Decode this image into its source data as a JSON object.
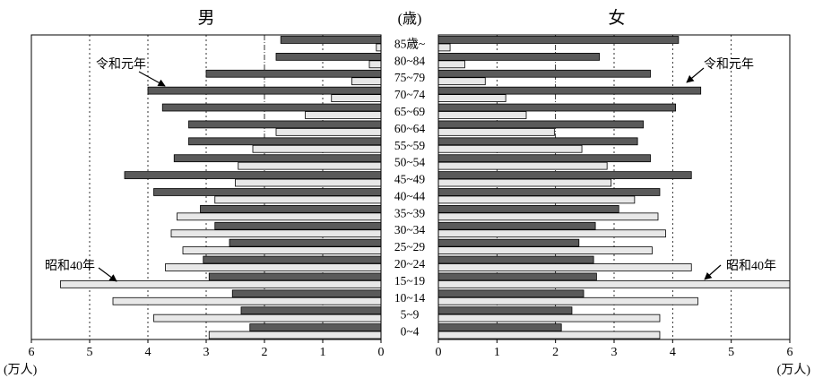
{
  "chart_data": {
    "type": "bar",
    "title_left": "男",
    "title_right": "女",
    "center_header": "(歳)",
    "unit_label": "(万人)",
    "age_groups": [
      "85歳~",
      "80~84",
      "75~79",
      "70~74",
      "65~69",
      "60~64",
      "55~59",
      "50~54",
      "45~49",
      "40~44",
      "35~39",
      "30~34",
      "25~29",
      "20~24",
      "15~19",
      "10~14",
      "5~9",
      "0~4"
    ],
    "x_range": [
      0,
      6
    ],
    "x_ticks": [
      "0",
      "1",
      "2",
      "3",
      "4",
      "5",
      "6"
    ],
    "grid": "vertical dotted lines at 1, 3, 4, 5 and dash-dot at 2",
    "series": [
      {
        "name": "令和元年",
        "sex": "男",
        "color": "#5a5a5a",
        "values": [
          1.72,
          1.8,
          3.0,
          4.0,
          3.75,
          3.3,
          3.3,
          3.55,
          4.4,
          3.9,
          3.1,
          2.85,
          2.6,
          3.05,
          2.95,
          2.55,
          2.4,
          2.25
        ]
      },
      {
        "name": "昭和40年",
        "sex": "男",
        "color": "#e8e8e8",
        "values": [
          0.08,
          0.2,
          0.5,
          0.85,
          1.3,
          1.8,
          2.2,
          2.45,
          2.5,
          2.85,
          3.5,
          3.6,
          3.4,
          3.7,
          5.5,
          4.6,
          3.9,
          2.95
        ]
      },
      {
        "name": "令和元年",
        "sex": "女",
        "color": "#5a5a5a",
        "values": [
          4.1,
          2.75,
          3.62,
          4.48,
          4.05,
          3.5,
          3.4,
          3.62,
          4.32,
          3.78,
          3.08,
          2.68,
          2.4,
          2.65,
          2.7,
          2.48,
          2.28,
          2.1
        ]
      },
      {
        "name": "昭和40年",
        "sex": "女",
        "color": "#e8e8e8",
        "values": [
          0.2,
          0.45,
          0.8,
          1.15,
          1.5,
          1.98,
          2.45,
          2.88,
          2.95,
          3.35,
          3.75,
          3.88,
          3.65,
          4.32,
          6.0,
          4.43,
          3.78,
          3.78
        ]
      }
    ],
    "annotations": [
      {
        "text": "令和元年",
        "side": "男"
      },
      {
        "text": "令和元年",
        "side": "女"
      },
      {
        "text": "昭和40年",
        "side": "男"
      },
      {
        "text": "昭和40年",
        "side": "女"
      }
    ]
  }
}
